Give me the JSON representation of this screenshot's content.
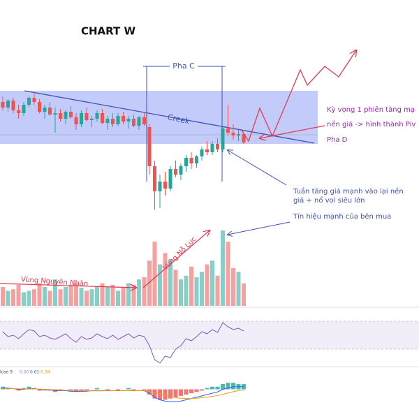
{
  "chart_data": [
    {
      "type": "candlestick",
      "title": "CHART W",
      "open": [
        82,
        78,
        83,
        76,
        74,
        80,
        85,
        82,
        75,
        78,
        73,
        74,
        70,
        75,
        71,
        66,
        74,
        69,
        70,
        74,
        67,
        70,
        66,
        72,
        68,
        70,
        65,
        71,
        64,
        36,
        18,
        25,
        20,
        34,
        30,
        36,
        42,
        38,
        43,
        48,
        46,
        52,
        48,
        63,
        60,
        58,
        59
      ],
      "high": [
        86,
        84,
        85,
        80,
        82,
        86,
        88,
        84,
        80,
        82,
        78,
        77,
        76,
        79,
        74,
        76,
        78,
        72,
        76,
        77,
        72,
        74,
        74,
        75,
        72,
        73,
        72,
        74,
        66,
        40,
        30,
        32,
        36,
        40,
        38,
        44,
        46,
        44,
        50,
        54,
        54,
        56,
        65,
        80,
        66,
        62,
        60
      ],
      "low": [
        76,
        75,
        74,
        70,
        72,
        78,
        80,
        74,
        70,
        72,
        60,
        68,
        66,
        70,
        62,
        64,
        68,
        64,
        68,
        66,
        62,
        64,
        65,
        66,
        63,
        64,
        62,
        65,
        30,
        5,
        6,
        15,
        18,
        28,
        26,
        32,
        34,
        35,
        40,
        44,
        44,
        46,
        46,
        58,
        55,
        54,
        52
      ],
      "close": [
        78,
        83,
        76,
        74,
        80,
        85,
        82,
        75,
        78,
        73,
        74,
        70,
        75,
        71,
        66,
        74,
        69,
        70,
        74,
        67,
        70,
        66,
        72,
        68,
        70,
        65,
        71,
        66,
        36,
        18,
        25,
        20,
        34,
        30,
        36,
        42,
        38,
        43,
        48,
        46,
        52,
        48,
        63,
        60,
        58,
        59,
        53
      ],
      "up_color": "#26a69a",
      "down_color": "#ef5350",
      "ylim": [
        0,
        100
      ]
    },
    {
      "type": "bar",
      "values": [
        25,
        20,
        22,
        28,
        18,
        20,
        22,
        30,
        25,
        20,
        35,
        22,
        25,
        28,
        30,
        24,
        20,
        22,
        26,
        30,
        25,
        28,
        20,
        24,
        30,
        28,
        35,
        38,
        60,
        85,
        55,
        70,
        62,
        48,
        35,
        40,
        52,
        38,
        45,
        55,
        60,
        40,
        100,
        85,
        50,
        45,
        30
      ],
      "ylim": [
        0,
        100
      ]
    },
    {
      "type": "line",
      "values": [
        55,
        48,
        50,
        45,
        52,
        58,
        56,
        48,
        50,
        46,
        44,
        48,
        52,
        45,
        40,
        48,
        44,
        46,
        52,
        48,
        45,
        50,
        44,
        48,
        52,
        46,
        50,
        48,
        35,
        15,
        10,
        20,
        18,
        30,
        35,
        45,
        42,
        48,
        55,
        52,
        58,
        54,
        68,
        62,
        58,
        60,
        56
      ],
      "color": "#7e57c2",
      "ylim": [
        0,
        100
      ]
    },
    {
      "type": "macd",
      "legend_name": "lose 9",
      "legend_values": [
        {
          "value": 0,
          "label": "0.00"
        },
        {
          "value": 0.61,
          "label": "0.61"
        },
        {
          "value": -0.34,
          "label": "-0.34"
        }
      ],
      "histogram": [
        2,
        1,
        0,
        -1,
        1,
        2,
        1,
        -1,
        0,
        -1,
        -2,
        -1,
        0,
        -1,
        -2,
        -1,
        -1,
        0,
        1,
        0,
        -1,
        0,
        -1,
        0,
        1,
        -1,
        0,
        -1,
        -4,
        -7,
        -8,
        -8,
        -7,
        -6,
        -5,
        -4,
        -3,
        -2,
        -1,
        1,
        2,
        2,
        4,
        5,
        5,
        4,
        4
      ],
      "macd": [
        1,
        1,
        0.5,
        0,
        0,
        0.5,
        0.5,
        0,
        -0.5,
        -0.5,
        -1,
        -1,
        -1,
        -1.5,
        -1.5,
        -1.5,
        -1.5,
        -1,
        -1,
        -1,
        -1,
        -1,
        -1,
        -1,
        -1,
        -1,
        -1,
        -1,
        -3,
        -6,
        -8,
        -9,
        -9.5,
        -9.5,
        -9,
        -8,
        -7,
        -6,
        -5,
        -4,
        -3,
        -2,
        0,
        1,
        2,
        2,
        2
      ],
      "signal": [
        0.5,
        0.6,
        0.6,
        0.4,
        0.3,
        0.3,
        0.3,
        0.2,
        0,
        -0.2,
        -0.4,
        -0.6,
        -0.7,
        -0.9,
        -1,
        -1.1,
        -1.2,
        -1.2,
        -1.2,
        -1.2,
        -1.1,
        -1.1,
        -1.1,
        -1.1,
        -1.1,
        -1.1,
        -1,
        -1,
        -1.4,
        -2.3,
        -3.4,
        -4.5,
        -5.5,
        -6.3,
        -6.8,
        -7,
        -7,
        -6.8,
        -6.4,
        -6,
        -5.4,
        -4.7,
        -3.8,
        -2.8,
        -1.8,
        -1,
        -0.4
      ],
      "macd_color": "#2962ff",
      "signal_color": "#ff9800",
      "ylim": [
        -12,
        12
      ]
    }
  ],
  "annotations": {
    "phase_c": "Pha C",
    "creek": "Creek",
    "expect_1": "Kỳ vọng 1 phiên tăng mạ",
    "expect_2": "nền giá -> hình thành Piv",
    "phase_d": "Pha D",
    "week_1": "Tuần tăng giá mạnh vào lại nền",
    "week_2": "giá + nổ vol siêu lớn",
    "signal": "Tín hiệu mạnh của bên mua",
    "cause_zone": "Vùng Nguyên Nhân",
    "effort_zone": "Vùng Nỗ Lực"
  }
}
